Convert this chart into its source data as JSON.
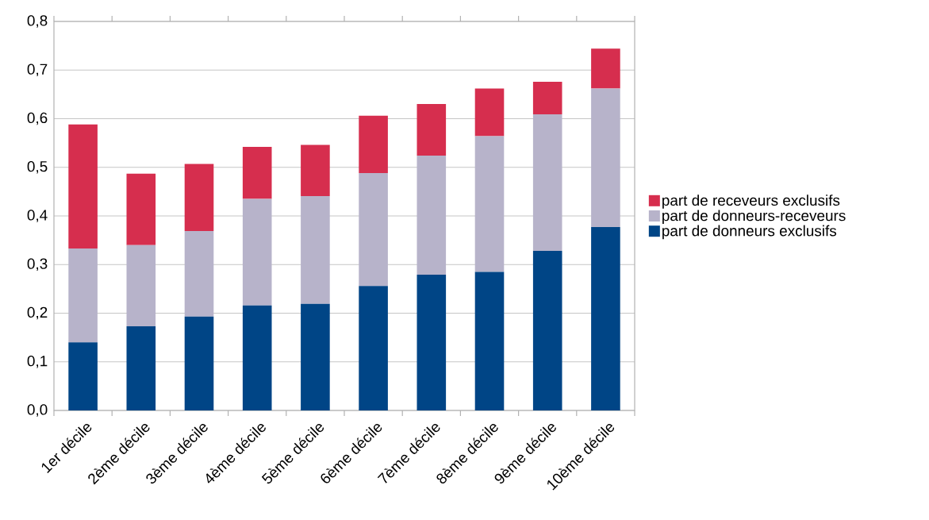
{
  "chart_data": {
    "type": "bar",
    "stacked": true,
    "categories": [
      "1er décile",
      "2ème décile",
      "3ème décile",
      "4ème décile",
      "5ème décile",
      "6ème décile",
      "7ème décile",
      "8ème décile",
      "9ème décile",
      "10ème décile"
    ],
    "series": [
      {
        "name": "part de donneurs exclusifs",
        "color": "#004586",
        "values": [
          0.14,
          0.173,
          0.193,
          0.216,
          0.219,
          0.256,
          0.279,
          0.285,
          0.328,
          0.377
        ]
      },
      {
        "name": "part de donneurs-receveurs",
        "color": "#b7b3ca",
        "values": [
          0.193,
          0.167,
          0.176,
          0.219,
          0.222,
          0.232,
          0.245,
          0.279,
          0.281,
          0.285
        ]
      },
      {
        "name": "part de receveurs exclusifs",
        "color": "#d62e4e",
        "values": [
          0.255,
          0.147,
          0.138,
          0.107,
          0.105,
          0.118,
          0.106,
          0.098,
          0.067,
          0.082
        ]
      }
    ],
    "ylim": [
      0,
      0.8
    ],
    "yticks": [
      {
        "value": 0,
        "label": "0,0"
      },
      {
        "value": 0.1,
        "label": "0,1"
      },
      {
        "value": 0.2,
        "label": "0,2"
      },
      {
        "value": 0.3,
        "label": "0,3"
      },
      {
        "value": 0.4,
        "label": "0,4"
      },
      {
        "value": 0.5,
        "label": "0,5"
      },
      {
        "value": 0.6,
        "label": "0,6"
      },
      {
        "value": 0.7,
        "label": "0,7"
      },
      {
        "value": 0.8,
        "label": "0,8"
      }
    ],
    "grid": "y",
    "legend": "right"
  }
}
